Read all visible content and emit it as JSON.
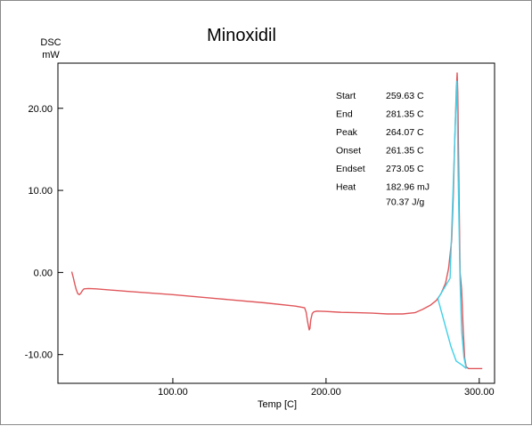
{
  "chart_data": {
    "type": "line",
    "title": "Minoxidil",
    "ylabel_line1": "DSC",
    "ylabel_line2": "mW",
    "xlabel": "Temp [C]",
    "xlim": [
      25,
      310
    ],
    "ylim": [
      -13.5,
      25.5
    ],
    "x_ticks": [
      100,
      200,
      300
    ],
    "x_tick_labels": [
      "100.00",
      "200.00",
      "300.00"
    ],
    "y_ticks": [
      20,
      10,
      0,
      -10
    ],
    "y_tick_labels": [
      "20.00",
      "10.00",
      "0.00",
      "-10.00"
    ],
    "grid": false,
    "series": [
      {
        "color": "#e0565a",
        "points": [
          [
            34,
            0.1
          ],
          [
            35,
            -0.6
          ],
          [
            36,
            -1.4
          ],
          [
            37,
            -2.1
          ],
          [
            38,
            -2.6
          ],
          [
            39,
            -2.7
          ],
          [
            40,
            -2.5
          ],
          [
            41,
            -2.2
          ],
          [
            42,
            -2.0
          ],
          [
            45,
            -1.95
          ],
          [
            50,
            -2.0
          ],
          [
            70,
            -2.3
          ],
          [
            100,
            -2.7
          ],
          [
            130,
            -3.2
          ],
          [
            160,
            -3.7
          ],
          [
            180,
            -4.1
          ],
          [
            186,
            -4.3
          ],
          [
            187,
            -4.8
          ],
          [
            188,
            -6.0
          ],
          [
            189,
            -7.0
          ],
          [
            189.5,
            -6.8
          ],
          [
            190,
            -5.8
          ],
          [
            191,
            -5.0
          ],
          [
            192,
            -4.8
          ],
          [
            194,
            -4.7
          ],
          [
            200,
            -4.75
          ],
          [
            210,
            -4.85
          ],
          [
            220,
            -4.9
          ],
          [
            230,
            -4.95
          ],
          [
            240,
            -5.05
          ],
          [
            250,
            -5.05
          ],
          [
            258,
            -4.9
          ],
          [
            263,
            -4.5
          ],
          [
            268,
            -4.0
          ],
          [
            272,
            -3.4
          ],
          [
            275,
            -2.6
          ],
          [
            278,
            -1.3
          ],
          [
            280,
            0.5
          ],
          [
            282,
            4.0
          ],
          [
            283,
            9.0
          ],
          [
            284,
            16.0
          ],
          [
            285,
            22.0
          ],
          [
            285.6,
            24.3
          ],
          [
            286,
            22.0
          ],
          [
            286.8,
            10.0
          ],
          [
            287.5,
            0.0
          ],
          [
            288.5,
            -2.0
          ],
          [
            289.5,
            -7.0
          ],
          [
            290.5,
            -10.5
          ],
          [
            291.5,
            -11.5
          ],
          [
            293,
            -11.7
          ],
          [
            297,
            -11.7
          ],
          [
            302,
            -11.7
          ]
        ]
      },
      {
        "color": "#3fd0e8",
        "points": [
          [
            273,
            -3.2
          ],
          [
            281,
            -0.7
          ],
          [
            284.5,
            19.0
          ],
          [
            285.5,
            23.3
          ],
          [
            286.2,
            12.0
          ],
          [
            287.5,
            -1.0
          ],
          [
            288.5,
            -7.0
          ],
          [
            290,
            -10.3
          ],
          [
            291.5,
            -11.7
          ]
        ]
      },
      {
        "color": "#3fd0e8",
        "points": [
          [
            273,
            -3.2
          ],
          [
            281.5,
            -9.0
          ],
          [
            285,
            -10.8
          ],
          [
            289,
            -11.3
          ],
          [
            291.5,
            -11.7
          ]
        ]
      }
    ],
    "annotation": {
      "rows": [
        {
          "label": "Start",
          "value": "259.63 C"
        },
        {
          "label": "End",
          "value": "281.35 C"
        },
        {
          "label": "Peak",
          "value": "264.07 C"
        },
        {
          "label": "Onset",
          "value": "261.35 C"
        },
        {
          "label": "Endset",
          "value": "273.05 C"
        },
        {
          "label": "Heat",
          "value": "182.96 mJ"
        }
      ],
      "extra": "70.37 J/g"
    }
  }
}
